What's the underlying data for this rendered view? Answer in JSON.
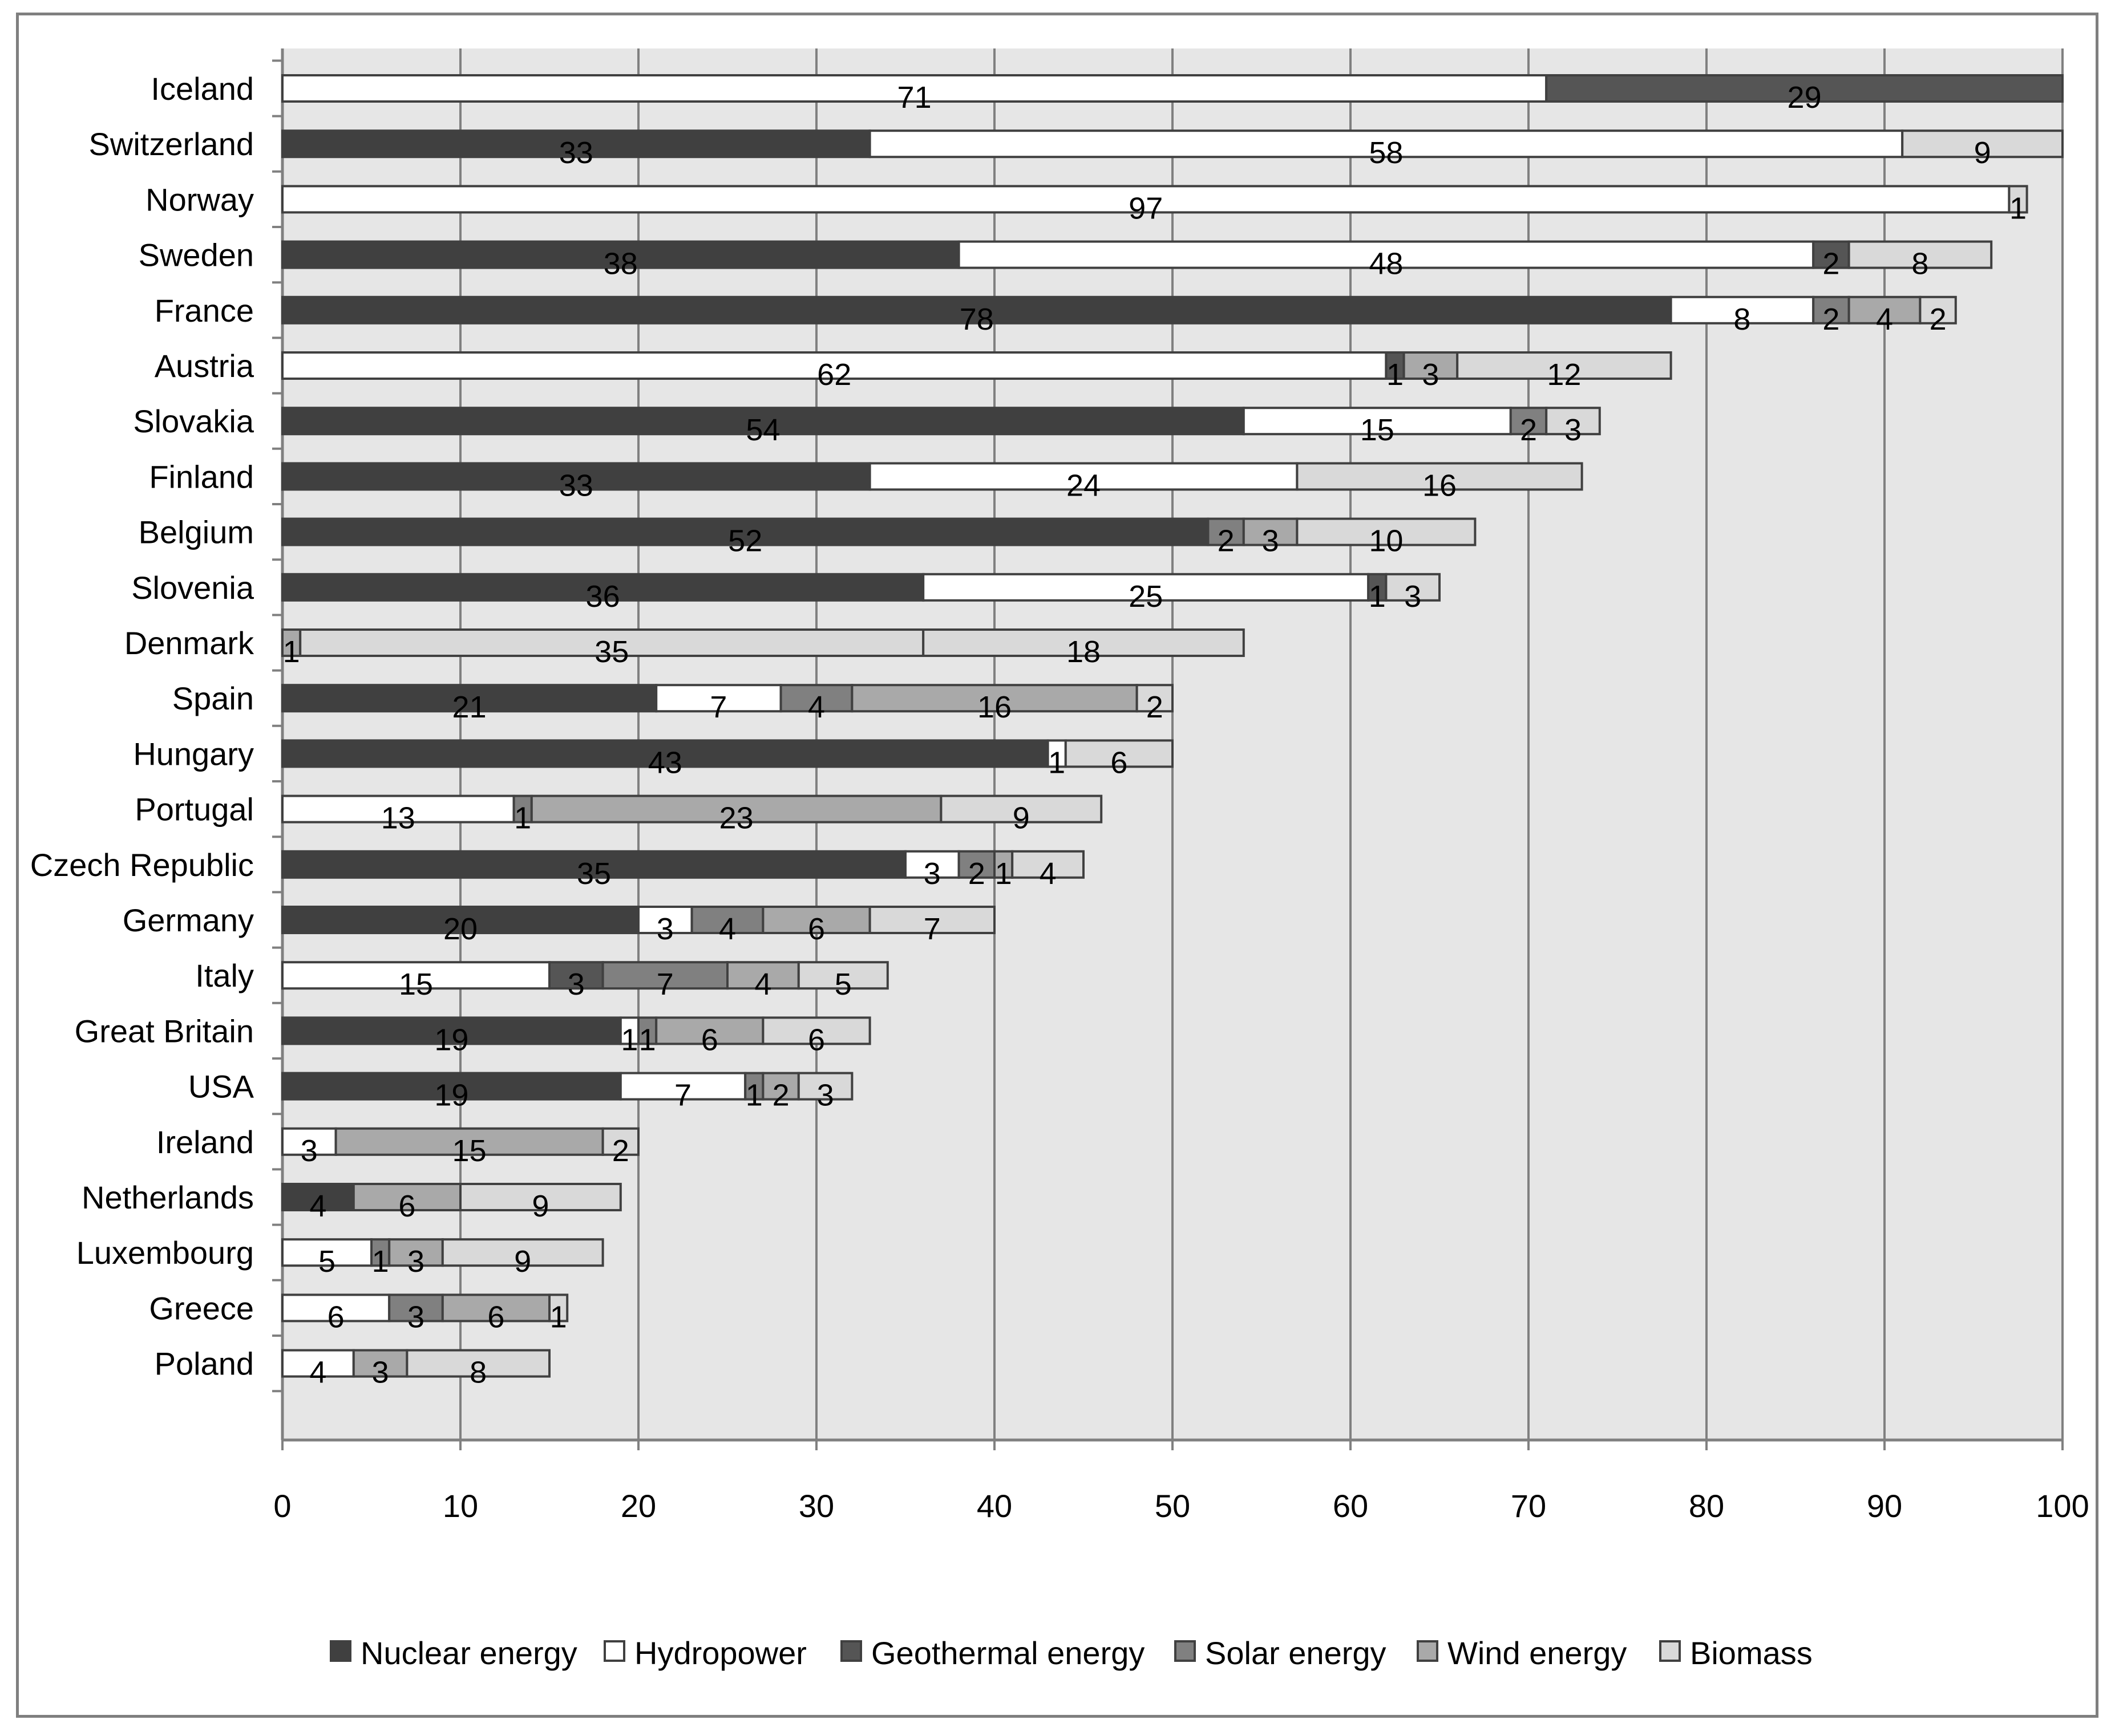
{
  "chart_data": {
    "type": "bar",
    "orientation": "horizontal",
    "stacked": true,
    "title": "",
    "xlabel": "",
    "ylabel": "",
    "xlim": [
      0,
      100
    ],
    "xticks": [
      "0",
      "10",
      "20",
      "30",
      "40",
      "50",
      "60",
      "70",
      "80",
      "90",
      "100"
    ],
    "grid": true,
    "legend_position": "bottom",
    "categories": [
      "Iceland",
      "Switzerland",
      "Norway",
      "Sweden",
      "France",
      "Austria",
      "Slovakia",
      "Finland",
      "Belgium",
      "Slovenia",
      "Denmark",
      "Spain",
      "Hungary",
      "Portugal",
      "Czech Republic",
      "Germany",
      "Italy",
      "Great Britain",
      "USA",
      "Ireland",
      "Netherlands",
      "Luxembourg",
      "Greece",
      "Poland"
    ],
    "series": [
      {
        "name": "Nuclear energy",
        "color": "#404040",
        "values": [
          0,
          33,
          0,
          38,
          78,
          0,
          54,
          33,
          52,
          36,
          0,
          21,
          43,
          0,
          35,
          20,
          0,
          19,
          19,
          0,
          4,
          0,
          0,
          0
        ]
      },
      {
        "name": "Hydropower",
        "color": "#ffffff",
        "values": [
          71,
          58,
          97,
          48,
          8,
          62,
          15,
          24,
          0,
          25,
          0,
          7,
          1,
          13,
          3,
          3,
          15,
          1,
          7,
          3,
          0,
          5,
          6,
          4
        ]
      },
      {
        "name": "Geothermal energy",
        "color": "#555555",
        "values": [
          29,
          0,
          0,
          2,
          0,
          1,
          0,
          0,
          0,
          1,
          0,
          0,
          0,
          0,
          0,
          0,
          3,
          0,
          0,
          0,
          0,
          0,
          0,
          0
        ]
      },
      {
        "name": "Solar energy",
        "color": "#808080",
        "values": [
          0,
          0,
          0,
          0,
          2,
          0,
          2,
          0,
          2,
          0,
          0,
          4,
          0,
          1,
          2,
          4,
          7,
          1,
          1,
          0,
          0,
          1,
          3,
          0
        ]
      },
      {
        "name": "Wind energy",
        "color": "#a9a9a9",
        "values": [
          0,
          0,
          0,
          0,
          4,
          3,
          0,
          0,
          3,
          0,
          1,
          16,
          0,
          23,
          1,
          6,
          4,
          6,
          2,
          15,
          6,
          3,
          6,
          3
        ]
      },
      {
        "name": "Biomass",
        "color": "#d9d9d9",
        "values": [
          0,
          9,
          1,
          8,
          2,
          12,
          3,
          16,
          10,
          3,
          35,
          2,
          6,
          9,
          4,
          7,
          5,
          6,
          3,
          2,
          9,
          9,
          1,
          8
        ]
      }
    ],
    "extra_segments": [
      {
        "category": "Denmark",
        "series": "Biomass",
        "value": 18
      }
    ]
  }
}
